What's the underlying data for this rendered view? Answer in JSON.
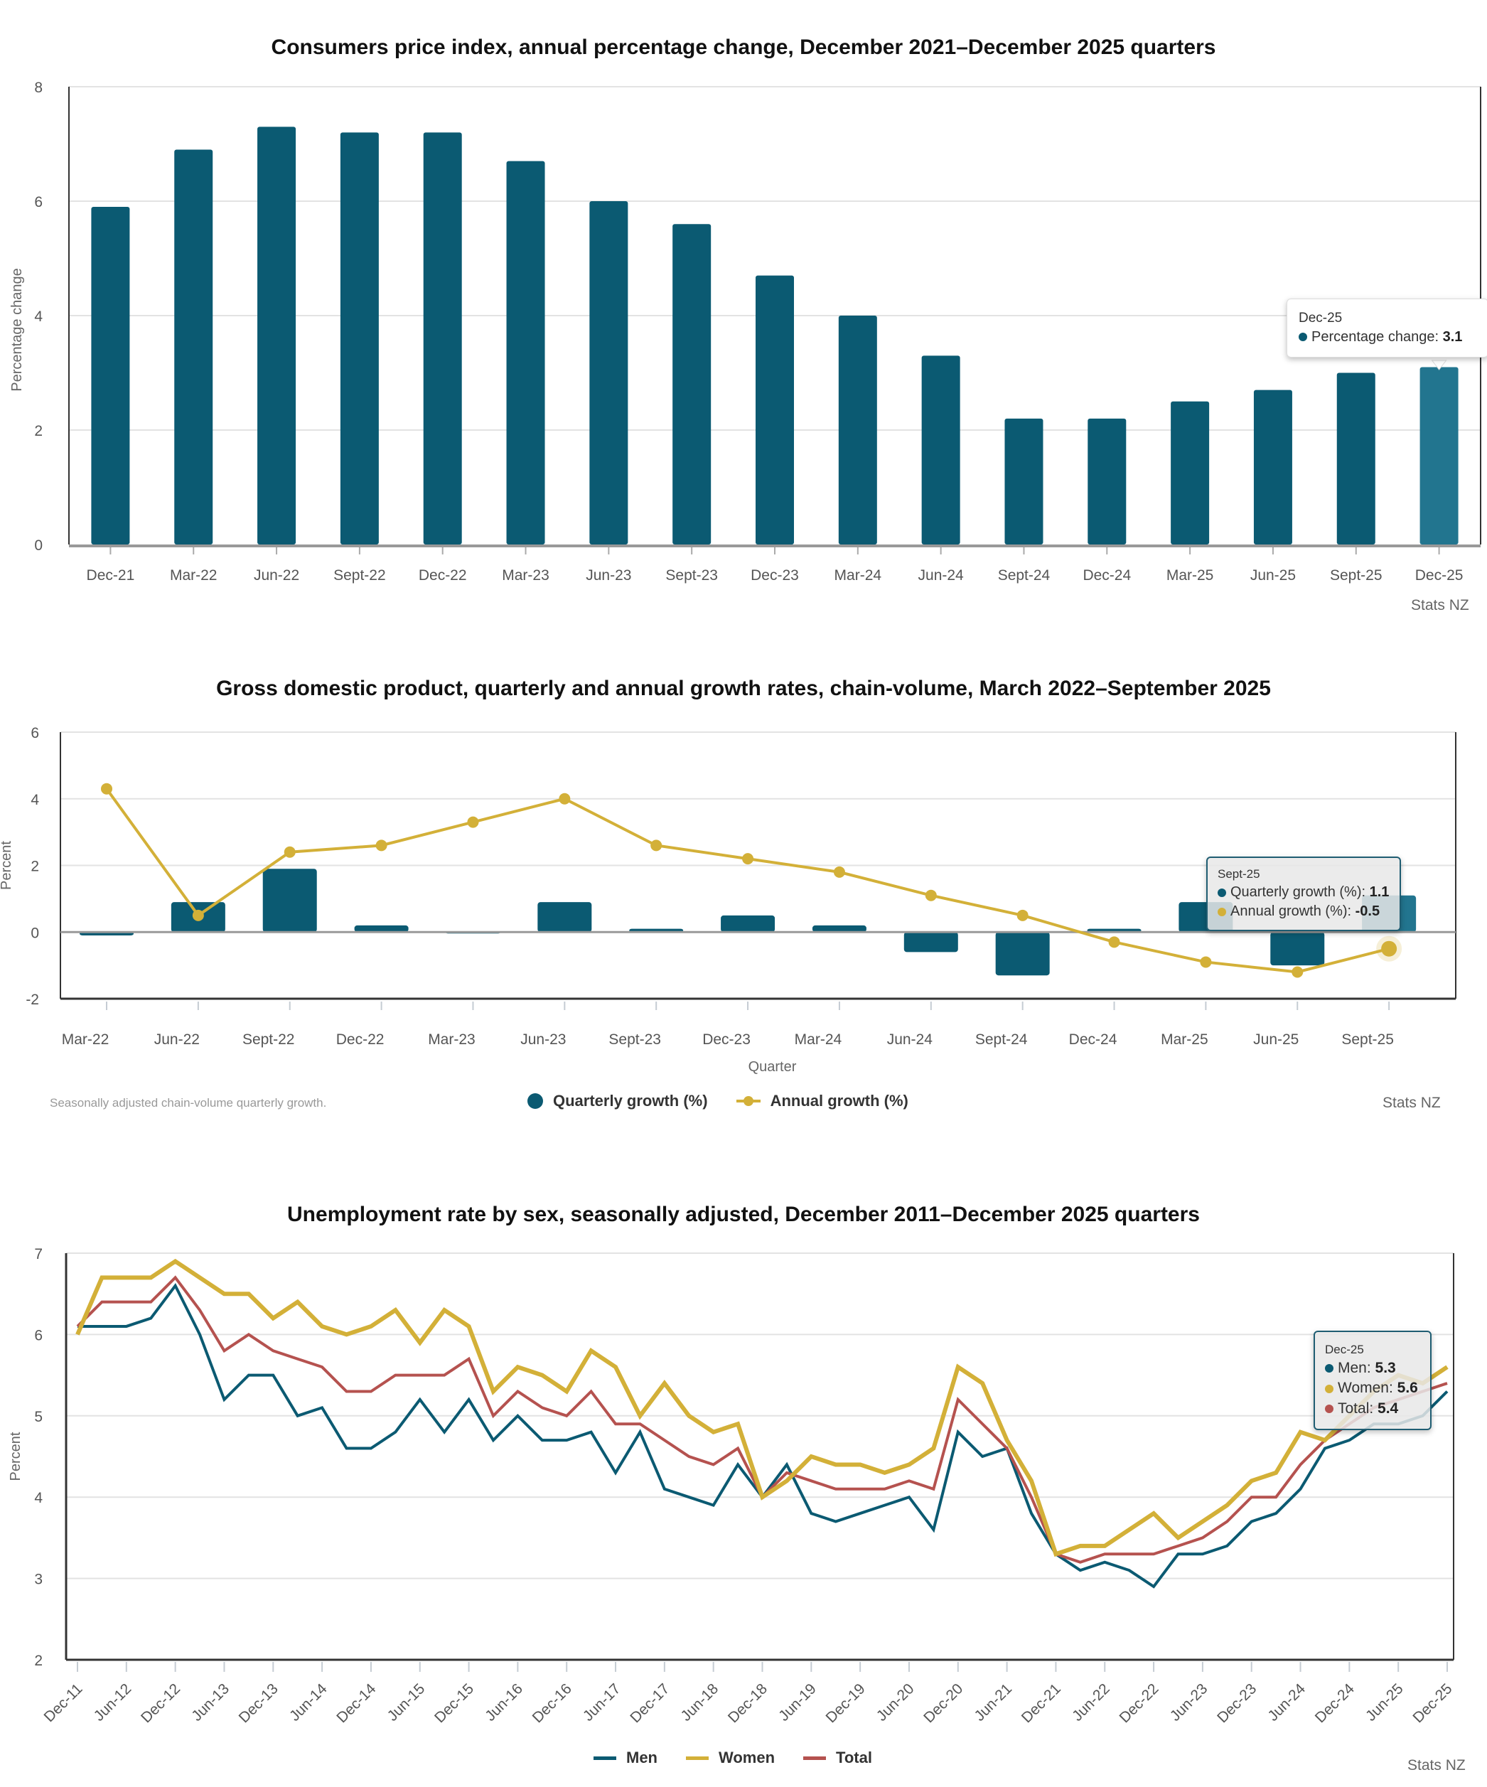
{
  "colors": {
    "teal": "#0b5a72",
    "teal_highlight": "#22758f",
    "gold": "#d3b038",
    "red": "#b5524f",
    "grid": "#e3e3e3",
    "axis": "#333333",
    "zero_line": "#999999"
  },
  "chart_data": [
    {
      "id": "cpi",
      "type": "bar",
      "title": "Consumers price index, annual percentage change, December 2021–December 2025 quarters",
      "xlabel": "",
      "ylabel": "Percentage change",
      "ylim": [
        0,
        8
      ],
      "yticks": [
        0,
        2,
        4,
        6,
        8
      ],
      "grid": true,
      "categories": [
        "Dec-21",
        "Mar-22",
        "Jun-22",
        "Sept-22",
        "Dec-22",
        "Mar-23",
        "Jun-23",
        "Sept-23",
        "Dec-23",
        "Mar-24",
        "Jun-24",
        "Sept-24",
        "Dec-24",
        "Mar-25",
        "Jun-25",
        "Sept-25",
        "Dec-25"
      ],
      "series": [
        {
          "name": "Percentage change",
          "values": [
            5.9,
            6.9,
            7.3,
            7.2,
            7.2,
            6.7,
            6.0,
            5.6,
            4.7,
            4.0,
            3.3,
            2.2,
            2.2,
            2.5,
            2.7,
            3.0,
            3.1
          ]
        }
      ],
      "highlighted_category": "Dec-25",
      "tooltip": {
        "title": "Dec-25",
        "rows": [
          {
            "label": "Percentage change: ",
            "value": "3.1"
          }
        ]
      },
      "credit": "Stats NZ"
    },
    {
      "id": "gdp",
      "type": "bar",
      "title": "Gross domestic product, quarterly and annual growth rates, chain-volume, March 2022–September 2025",
      "xlabel": "Quarter",
      "ylabel": "Percent",
      "ylim": [
        -2,
        6
      ],
      "yticks": [
        -2,
        0,
        2,
        4,
        6
      ],
      "grid": true,
      "categories": [
        "Mar-22",
        "Jun-22",
        "Sept-22",
        "Dec-22",
        "Mar-23",
        "Jun-23",
        "Sept-23",
        "Dec-23",
        "Mar-24",
        "Jun-24",
        "Sept-24",
        "Dec-24",
        "Mar-25",
        "Jun-25",
        "Sept-25"
      ],
      "series": [
        {
          "name": "Quarterly growth (%)",
          "type": "bar",
          "values": [
            -0.1,
            0.9,
            1.9,
            0.2,
            0.0,
            0.9,
            0.1,
            0.5,
            0.2,
            -0.6,
            -1.3,
            0.1,
            0.9,
            -1.0,
            1.1
          ]
        },
        {
          "name": "Annual growth (%)",
          "type": "line",
          "values": [
            4.3,
            0.5,
            2.4,
            2.6,
            3.3,
            4.0,
            2.6,
            2.2,
            1.8,
            1.1,
            0.5,
            -0.3,
            -0.9,
            -1.2,
            -0.5
          ]
        }
      ],
      "legend": "bottom-center",
      "highlighted_category": "Sept-25",
      "tooltip": {
        "title": "Sept-25",
        "rows": [
          {
            "label": "Quarterly growth (%): ",
            "value": "1.1"
          },
          {
            "label": "Annual growth (%): ",
            "value": "-0.5"
          }
        ]
      },
      "footnote": "Seasonally adjusted chain-volume quarterly growth.",
      "credit": "Stats NZ"
    },
    {
      "id": "unemployment",
      "type": "line",
      "title": "Unemployment rate by sex, seasonally adjusted, December 2011–December 2025 quarters",
      "xlabel": "",
      "ylabel": "Percent",
      "ylim": [
        2,
        7
      ],
      "yticks": [
        2,
        3,
        4,
        5,
        6,
        7
      ],
      "grid": true,
      "x": [
        "Dec-11",
        "Mar-12",
        "Jun-12",
        "Sep-12",
        "Dec-12",
        "Mar-13",
        "Jun-13",
        "Sep-13",
        "Dec-13",
        "Mar-14",
        "Jun-14",
        "Sep-14",
        "Dec-14",
        "Mar-15",
        "Jun-15",
        "Sep-15",
        "Dec-15",
        "Mar-16",
        "Jun-16",
        "Sep-16",
        "Dec-16",
        "Mar-17",
        "Jun-17",
        "Sep-17",
        "Dec-17",
        "Mar-18",
        "Jun-18",
        "Sep-18",
        "Dec-18",
        "Mar-19",
        "Jun-19",
        "Sep-19",
        "Dec-19",
        "Mar-20",
        "Jun-20",
        "Sep-20",
        "Dec-20",
        "Mar-21",
        "Jun-21",
        "Sep-21",
        "Dec-21",
        "Mar-22",
        "Jun-22",
        "Sep-22",
        "Dec-22",
        "Mar-23",
        "Jun-23",
        "Sep-23",
        "Dec-23",
        "Mar-24",
        "Jun-24",
        "Sep-24",
        "Dec-24",
        "Mar-25",
        "Jun-25",
        "Sep-25",
        "Dec-25"
      ],
      "xtick_labels": [
        "Dec-11",
        "Jun-12",
        "Dec-12",
        "Jun-13",
        "Dec-13",
        "Jun-14",
        "Dec-14",
        "Jun-15",
        "Dec-15",
        "Jun-16",
        "Dec-16",
        "Jun-17",
        "Dec-17",
        "Jun-18",
        "Dec-18",
        "Jun-19",
        "Dec-19",
        "Jun-20",
        "Dec-20",
        "Jun-21",
        "Dec-21",
        "Jun-22",
        "Dec-22",
        "Jun-23",
        "Dec-23",
        "Jun-24",
        "Dec-24",
        "Jun-25",
        "Dec-25"
      ],
      "series": [
        {
          "name": "Men",
          "values": [
            6.1,
            6.1,
            6.1,
            6.2,
            6.6,
            6.0,
            5.2,
            5.5,
            5.5,
            5.0,
            5.1,
            4.6,
            4.6,
            4.8,
            5.2,
            4.8,
            5.2,
            4.7,
            5.0,
            4.7,
            4.7,
            4.8,
            4.3,
            4.8,
            4.1,
            4.0,
            3.9,
            4.4,
            4.0,
            4.4,
            3.8,
            3.7,
            3.8,
            3.9,
            4.0,
            3.6,
            4.8,
            4.5,
            4.6,
            3.8,
            3.3,
            3.1,
            3.2,
            3.1,
            2.9,
            3.3,
            3.3,
            3.4,
            3.7,
            3.8,
            4.1,
            4.6,
            4.7,
            4.9,
            4.9,
            5.0,
            5.3
          ]
        },
        {
          "name": "Women",
          "values": [
            6.0,
            6.7,
            6.7,
            6.7,
            6.9,
            6.7,
            6.5,
            6.5,
            6.2,
            6.4,
            6.1,
            6.0,
            6.1,
            6.3,
            5.9,
            6.3,
            6.1,
            5.3,
            5.6,
            5.5,
            5.3,
            5.8,
            5.6,
            5.0,
            5.4,
            5.0,
            4.8,
            4.9,
            4.0,
            4.2,
            4.5,
            4.4,
            4.4,
            4.3,
            4.4,
            4.6,
            5.6,
            5.4,
            4.7,
            4.2,
            3.3,
            3.4,
            3.4,
            3.6,
            3.8,
            3.5,
            3.7,
            3.9,
            4.2,
            4.3,
            4.8,
            4.7,
            5.0,
            5.3,
            5.5,
            5.4,
            5.6
          ]
        },
        {
          "name": "Total",
          "values": [
            6.1,
            6.4,
            6.4,
            6.4,
            6.7,
            6.3,
            5.8,
            6.0,
            5.8,
            5.7,
            5.6,
            5.3,
            5.3,
            5.5,
            5.5,
            5.5,
            5.7,
            5.0,
            5.3,
            5.1,
            5.0,
            5.3,
            4.9,
            4.9,
            4.7,
            4.5,
            4.4,
            4.6,
            4.0,
            4.3,
            4.2,
            4.1,
            4.1,
            4.1,
            4.2,
            4.1,
            5.2,
            4.9,
            4.6,
            4.0,
            3.3,
            3.2,
            3.3,
            3.3,
            3.3,
            3.4,
            3.5,
            3.7,
            4.0,
            4.0,
            4.4,
            4.7,
            4.9,
            5.1,
            5.2,
            5.3,
            5.4
          ]
        }
      ],
      "legend": "bottom-center",
      "highlighted_category": "Dec-25",
      "tooltip": {
        "title": "Dec-25",
        "rows": [
          {
            "label": "Men: ",
            "value": "5.3"
          },
          {
            "label": "Women: ",
            "value": "5.6"
          },
          {
            "label": "Total: ",
            "value": "5.4"
          }
        ]
      },
      "credit": "Stats NZ"
    }
  ]
}
